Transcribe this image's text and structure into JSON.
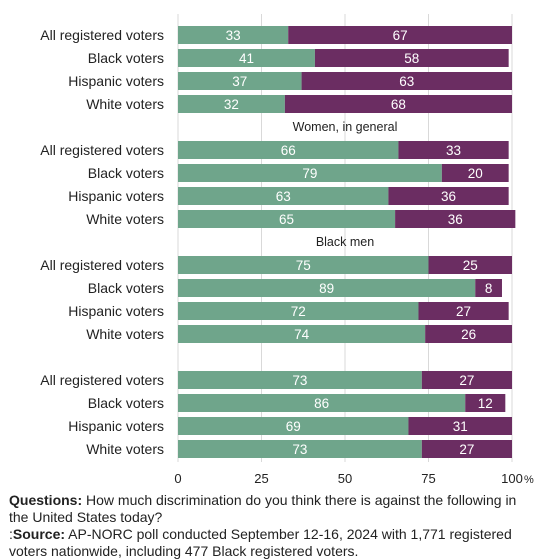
{
  "chart_data": {
    "type": "bar",
    "stacked": true,
    "orientation": "horizontal",
    "xlim": [
      0,
      100
    ],
    "xticks": [
      "0",
      "25",
      "50",
      "75",
      "100"
    ],
    "unit_label": "%",
    "colors": {
      "first": "#6fa58b",
      "second": "#6b2d62"
    },
    "groups": [
      {
        "subtitle": "",
        "categories": [
          "All registered voters",
          "Black voters",
          "Hispanic voters",
          "White voters"
        ],
        "series": [
          {
            "values": [
              33,
              41,
              37,
              32
            ]
          },
          {
            "values": [
              67,
              58,
              63,
              68
            ]
          }
        ]
      },
      {
        "subtitle": "Women, in general",
        "categories": [
          "All registered voters",
          "Black voters",
          "Hispanic voters",
          "White voters"
        ],
        "series": [
          {
            "values": [
              66,
              79,
              63,
              65
            ]
          },
          {
            "values": [
              33,
              20,
              36,
              36
            ]
          }
        ]
      },
      {
        "subtitle": "Black men",
        "categories": [
          "All registered voters",
          "Black voters",
          "Hispanic voters",
          "White voters"
        ],
        "series": [
          {
            "values": [
              75,
              89,
              72,
              74
            ]
          },
          {
            "values": [
              25,
              8,
              27,
              26
            ]
          }
        ]
      },
      {
        "subtitle": "",
        "categories": [
          "All registered voters",
          "Black voters",
          "Hispanic voters",
          "White voters"
        ],
        "series": [
          {
            "values": [
              73,
              86,
              69,
              73
            ]
          },
          {
            "values": [
              27,
              12,
              31,
              27
            ]
          }
        ]
      }
    ]
  },
  "footnote": {
    "questions_label": "Questions:",
    "questions_text": "How much discrimination do you think there is against the following in the United States today?",
    "source_prefix": ":",
    "source_label": "Source:",
    "source_text": "AP-NORC poll conducted September 12-16, 2024 with 1,771 registered voters nationwide, including 477 Black registered voters."
  }
}
